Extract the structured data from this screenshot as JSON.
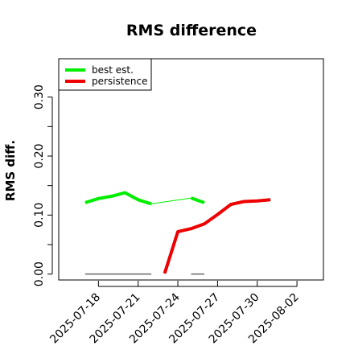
{
  "chart_data": {
    "type": "line",
    "title": "RMS difference",
    "xlabel": "",
    "ylabel": "RMS diff.",
    "ylim": [
      -0.01,
      0.365
    ],
    "y_ticks": [
      0.0,
      0.05,
      0.1,
      0.15,
      0.2,
      0.25,
      0.3
    ],
    "y_tick_labels": [
      "0.00",
      "",
      "0.10",
      "",
      "0.20",
      "",
      "0.30"
    ],
    "x_range": [
      "2025-07-15",
      "2025-08-04"
    ],
    "x_ticks": [
      "2025-07-18",
      "2025-07-21",
      "2025-07-24",
      "2025-07-27",
      "2025-07-30",
      "2025-08-02"
    ],
    "legend": {
      "placement": "top-left"
    },
    "series": [
      {
        "name": "best est.",
        "color": "#00ee00",
        "segments": [
          [
            [
              "2025-07-17",
              0.121
            ],
            [
              "2025-07-18",
              0.128
            ],
            [
              "2025-07-19",
              0.132
            ],
            [
              "2025-07-20",
              0.138
            ],
            [
              "2025-07-21",
              0.126
            ],
            [
              "2025-07-22",
              0.119
            ]
          ],
          [
            [
              "2025-07-25",
              0.129
            ],
            [
              "2025-07-26",
              0.121
            ]
          ]
        ],
        "thin_segments": [
          [
            [
              "2025-07-22",
              0.119
            ],
            [
              "2025-07-25",
              0.129
            ]
          ]
        ]
      },
      {
        "name": "persistence",
        "color": "#ee0000",
        "segments": [
          [
            [
              "2025-07-23",
              0.001
            ],
            [
              "2025-07-24",
              0.072
            ],
            [
              "2025-07-25",
              0.077
            ],
            [
              "2025-07-26",
              0.085
            ],
            [
              "2025-07-27",
              0.101
            ],
            [
              "2025-07-28",
              0.118
            ],
            [
              "2025-07-29",
              0.123
            ],
            [
              "2025-07-30",
              0.124
            ],
            [
              "2025-07-31",
              0.126
            ]
          ]
        ]
      }
    ],
    "baseline_segments": {
      "color": "#666666",
      "value": 0.0,
      "ranges": [
        [
          "2025-07-17",
          "2025-07-22"
        ],
        [
          "2025-07-25",
          "2025-07-26"
        ]
      ]
    }
  }
}
